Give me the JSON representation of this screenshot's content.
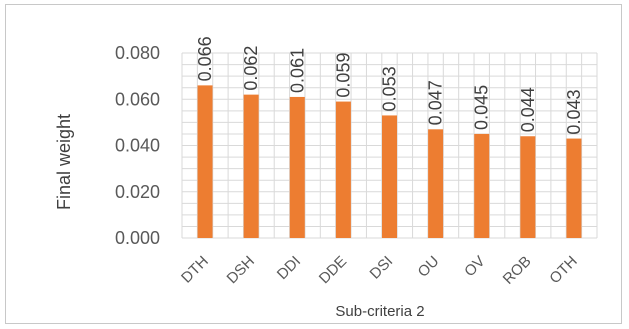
{
  "chart_data": {
    "type": "bar",
    "categories": [
      "DTH",
      "DSH",
      "DDI",
      "DDE",
      "DSI",
      "OU",
      "OV",
      "ROB",
      "OTH"
    ],
    "values": [
      0.066,
      0.062,
      0.061,
      0.059,
      0.053,
      0.047,
      0.045,
      0.044,
      0.043
    ],
    "data_labels": [
      "0.066",
      "0.062",
      "0.061",
      "0.059",
      "0.053",
      "0.047",
      "0.045",
      "0.044",
      "0.043"
    ],
    "yticks": [
      "0.000",
      "0.020",
      "0.040",
      "0.060",
      "0.080"
    ],
    "ytick_values": [
      0,
      0.02,
      0.04,
      0.06,
      0.08
    ],
    "ylim": [
      0,
      0.08
    ],
    "xlabel": "Sub-criteria 2",
    "ylabel": "Final weight",
    "grid": true,
    "legend": "none",
    "bar_color": "#ED7D31",
    "grid_color": "#D9D9D9"
  }
}
